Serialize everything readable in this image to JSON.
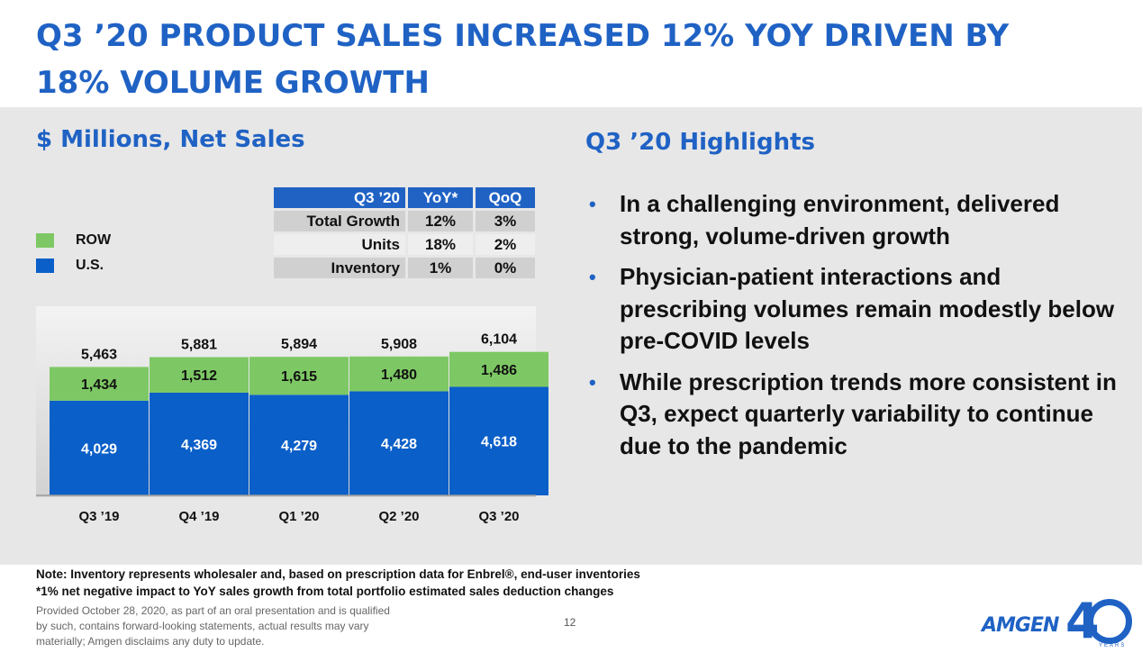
{
  "title": {
    "line1": "Q3 ’20 PRODUCT SALES INCREASED 12% YOY DRIVEN BY",
    "line2": "18% VOLUME GROWTH"
  },
  "left_subtitle": "$ Millions, Net Sales",
  "right_subtitle": "Q3 ’20 Highlights",
  "growth_table": {
    "headers": [
      "Q3 ’20",
      "YoY*",
      "QoQ"
    ],
    "rows": [
      {
        "label": "Total Growth",
        "yoy": "12%",
        "qoq": "3%"
      },
      {
        "label": "Units",
        "yoy": "18%",
        "qoq": "2%"
      },
      {
        "label": "Inventory",
        "yoy": "1%",
        "qoq": "0%"
      }
    ]
  },
  "legend": [
    {
      "label": "ROW",
      "color": "#7dc864"
    },
    {
      "label": "U.S.",
      "color": "#0a5fc8"
    }
  ],
  "chart_data": {
    "type": "bar",
    "stacked": true,
    "categories": [
      "Q3 ’19",
      "Q4 ’19",
      "Q1 ’20",
      "Q2 ’20",
      "Q3 ’20"
    ],
    "series": [
      {
        "name": "U.S.",
        "color": "#0a5fc8",
        "values": [
          4029,
          4369,
          4279,
          4428,
          4618
        ]
      },
      {
        "name": "ROW",
        "color": "#7dc864",
        "values": [
          1434,
          1512,
          1615,
          1480,
          1486
        ]
      }
    ],
    "totals": [
      5463,
      5881,
      5894,
      5908,
      6104
    ],
    "grid": false
  },
  "highlights": [
    "In a challenging environment, delivered strong, volume-driven growth",
    "Physician-patient interactions and prescribing volumes remain modestly below pre-COVID levels",
    "While prescription trends more consistent in Q3, expect quarterly variability to continue due to the pandemic"
  ],
  "notes": {
    "note1": "Note: Inventory represents wholesaler and, based on prescription data for Enbrel®, end-user inventories",
    "note2": "*1% net negative impact to YoY sales growth from total portfolio estimated sales deduction changes"
  },
  "disclaimer": [
    "Provided October 28, 2020, as part of an oral presentation and is qualified",
    "by such, contains forward-looking statements, actual results may vary",
    "materially; Amgen disclaims any duty to update."
  ],
  "page_number": "12",
  "logo": {
    "word": "AMGEN",
    "number": "4",
    "years": "YEARS"
  }
}
